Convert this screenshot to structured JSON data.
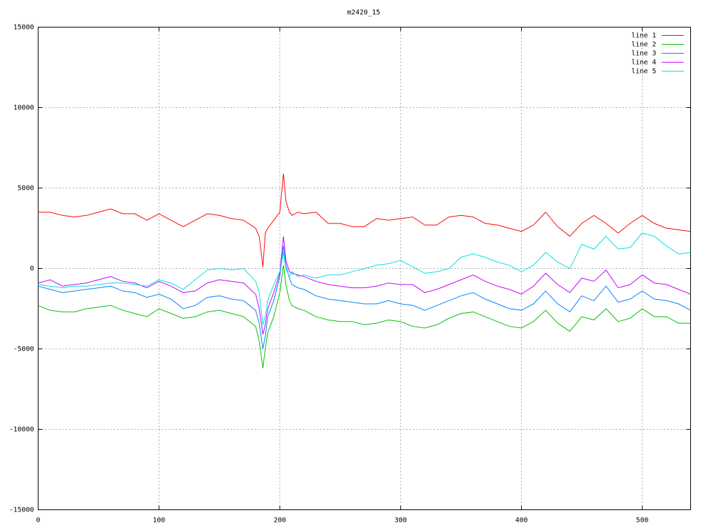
{
  "chart_data": {
    "type": "line",
    "title": "m2420_15",
    "x": [
      0,
      10,
      20,
      30,
      40,
      50,
      60,
      70,
      80,
      90,
      100,
      110,
      120,
      130,
      140,
      150,
      160,
      170,
      180,
      183,
      186,
      188,
      190,
      195,
      200,
      203,
      205,
      208,
      210,
      215,
      220,
      230,
      240,
      250,
      260,
      270,
      280,
      290,
      300,
      310,
      320,
      330,
      340,
      350,
      360,
      370,
      380,
      390,
      400,
      410,
      420,
      430,
      440,
      450,
      460,
      470,
      480,
      490,
      500,
      510,
      520,
      530,
      540
    ],
    "series": [
      {
        "name": "line 1",
        "color": "#ff0000",
        "values": [
          3500,
          3500,
          3300,
          3200,
          3300,
          3500,
          3700,
          3400,
          3400,
          3000,
          3400,
          3000,
          2600,
          3000,
          3400,
          3300,
          3100,
          3000,
          2500,
          2000,
          100,
          2200,
          2500,
          3000,
          3500,
          5900,
          4200,
          3500,
          3300,
          3500,
          3400,
          3500,
          2800,
          2800,
          2600,
          2600,
          3100,
          3000,
          3100,
          3200,
          2700,
          2700,
          3200,
          3300,
          3200,
          2800,
          2700,
          2500,
          2300,
          2700,
          3500,
          2600,
          2000,
          2800,
          3300,
          2800,
          2200,
          2800,
          3300,
          2800,
          2500,
          2400,
          2300
        ]
      },
      {
        "name": "line 2",
        "color": "#00c000",
        "values": [
          -2300,
          -2600,
          -2700,
          -2700,
          -2500,
          -2400,
          -2300,
          -2600,
          -2800,
          -3000,
          -2500,
          -2800,
          -3100,
          -3000,
          -2700,
          -2600,
          -2800,
          -3000,
          -3600,
          -4500,
          -6200,
          -5000,
          -4000,
          -3000,
          -1500,
          200,
          -1000,
          -2000,
          -2300,
          -2500,
          -2600,
          -3000,
          -3200,
          -3300,
          -3300,
          -3500,
          -3400,
          -3200,
          -3300,
          -3600,
          -3700,
          -3500,
          -3100,
          -2800,
          -2700,
          -3000,
          -3300,
          -3600,
          -3700,
          -3300,
          -2600,
          -3400,
          -3900,
          -3000,
          -3200,
          -2500,
          -3300,
          -3100,
          -2500,
          -3000,
          -3000,
          -3400,
          -3400
        ]
      },
      {
        "name": "line 3",
        "color": "#0080ff",
        "values": [
          -1100,
          -1300,
          -1500,
          -1400,
          -1300,
          -1200,
          -1100,
          -1400,
          -1500,
          -1800,
          -1600,
          -1900,
          -2500,
          -2300,
          -1800,
          -1700,
          -1900,
          -2000,
          -2600,
          -3400,
          -5000,
          -4200,
          -3000,
          -2000,
          -500,
          1400,
          200,
          -600,
          -1000,
          -1200,
          -1300,
          -1700,
          -1900,
          -2000,
          -2100,
          -2200,
          -2200,
          -2000,
          -2200,
          -2300,
          -2600,
          -2300,
          -2000,
          -1700,
          -1500,
          -1900,
          -2200,
          -2500,
          -2600,
          -2200,
          -1400,
          -2200,
          -2700,
          -1700,
          -2000,
          -1100,
          -2100,
          -1900,
          -1400,
          -1900,
          -2000,
          -2200,
          -2600
        ]
      },
      {
        "name": "line 4",
        "color": "#c000ff",
        "values": [
          -900,
          -700,
          -1100,
          -1000,
          -900,
          -700,
          -500,
          -800,
          -900,
          -1200,
          -800,
          -1100,
          -1500,
          -1400,
          -900,
          -700,
          -800,
          -900,
          -1600,
          -2500,
          -4100,
          -3500,
          -2500,
          -1500,
          -300,
          2000,
          500,
          -200,
          -300,
          -400,
          -500,
          -800,
          -1000,
          -1100,
          -1200,
          -1200,
          -1100,
          -900,
          -1000,
          -1000,
          -1500,
          -1300,
          -1000,
          -700,
          -400,
          -800,
          -1100,
          -1300,
          -1600,
          -1100,
          -300,
          -1000,
          -1500,
          -600,
          -800,
          -100,
          -1200,
          -1000,
          -400,
          -900,
          -1000,
          -1300,
          -1600
        ]
      },
      {
        "name": "line 5",
        "color": "#00e0e0",
        "values": [
          -1000,
          -1100,
          -1200,
          -1100,
          -1100,
          -1000,
          -900,
          -900,
          -1000,
          -1100,
          -700,
          -900,
          -1300,
          -700,
          -100,
          0,
          -100,
          0,
          -800,
          -1500,
          -3500,
          -3000,
          -2000,
          -1000,
          -200,
          1000,
          0,
          -500,
          -200,
          -500,
          -400,
          -600,
          -400,
          -400,
          -200,
          0,
          200,
          300,
          500,
          100,
          -300,
          -200,
          0,
          700,
          900,
          700,
          400,
          200,
          -200,
          200,
          1000,
          400,
          0,
          1500,
          1200,
          2000,
          1200,
          1300,
          2200,
          2000,
          1400,
          900,
          1000
        ]
      }
    ],
    "xlim": [
      0,
      540
    ],
    "xticks": [
      0,
      100,
      200,
      300,
      400,
      500
    ],
    "ylim": [
      -15000,
      15000
    ],
    "yticks": [
      -15000,
      -10000,
      -5000,
      0,
      5000,
      10000,
      15000
    ],
    "grid": true,
    "legend": "upper right"
  }
}
